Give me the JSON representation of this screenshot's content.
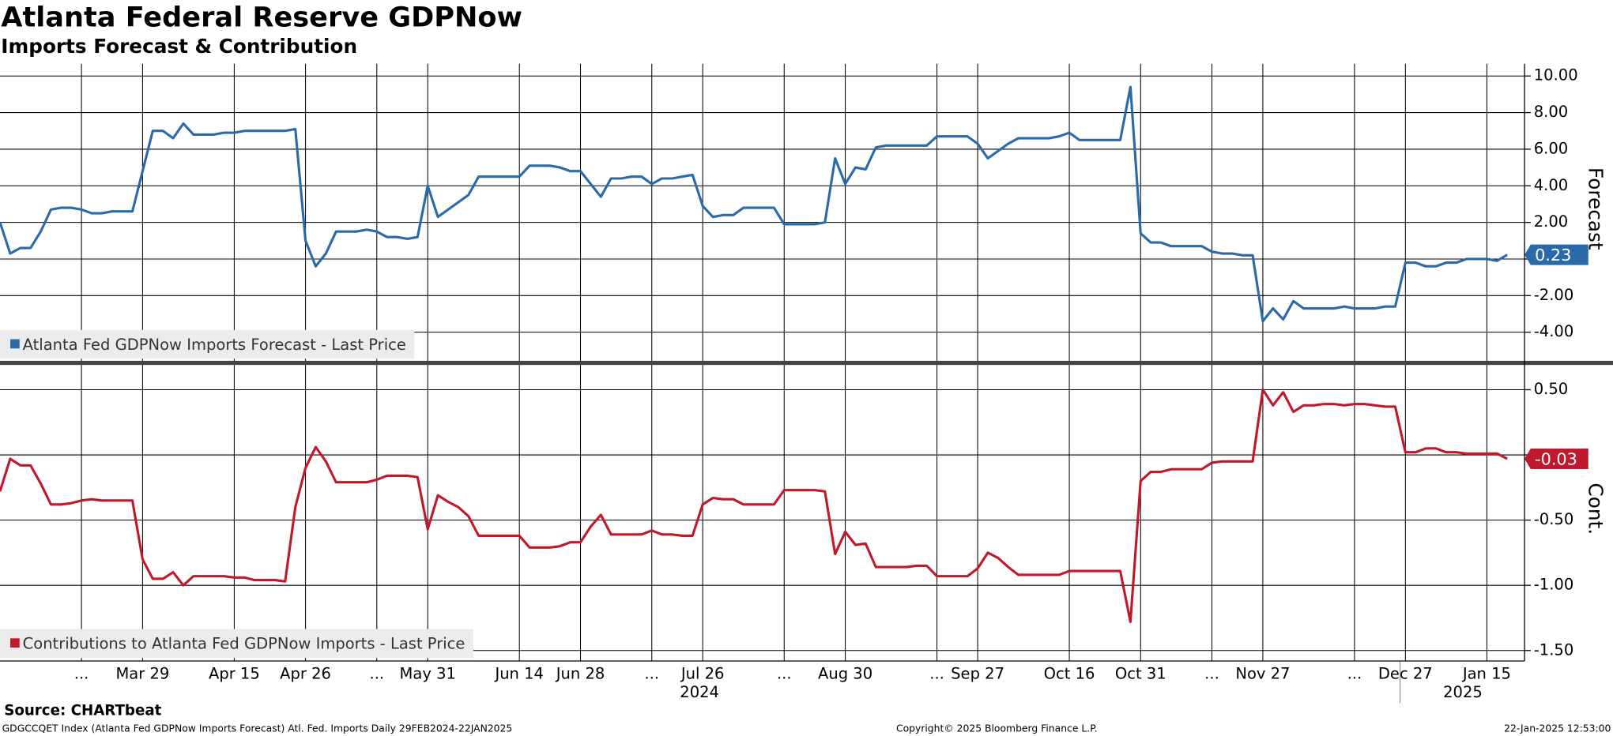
{
  "chart_data": {
    "type": "line",
    "title": "Atlanta Federal Reserve GDPNow",
    "subtitle": "Imports Forecast & Contribution",
    "source": "Source: CHARTbeat",
    "footer_left": "GDGCCQET Index (Atlanta Fed GDPNow Imports Forecast) Atl. Fed. Imports  Daily 29FEB2024-22JAN2025",
    "footer_center": "Copyright© 2025 Bloomberg Finance L.P.",
    "footer_right": "22-Jan-2025 12:53:00",
    "years": [
      "2024",
      "2025"
    ],
    "categories": [
      null,
      null,
      null,
      null,
      null,
      null,
      null,
      null,
      "...",
      null,
      null,
      null,
      null,
      null,
      "Mar 29",
      null,
      null,
      null,
      null,
      null,
      null,
      null,
      null,
      "Apr 15",
      null,
      null,
      null,
      null,
      null,
      null,
      "Apr 26",
      null,
      null,
      null,
      null,
      null,
      null,
      "...",
      null,
      null,
      null,
      null,
      "May 31",
      null,
      null,
      null,
      null,
      null,
      null,
      null,
      null,
      "Jun 14",
      null,
      null,
      null,
      null,
      null,
      "Jun 28",
      null,
      null,
      null,
      null,
      null,
      null,
      "...",
      null,
      null,
      null,
      null,
      "Jul 26",
      null,
      null,
      null,
      null,
      null,
      null,
      null,
      "...",
      null,
      null,
      null,
      null,
      null,
      "Aug 30",
      null,
      null,
      null,
      null,
      null,
      null,
      null,
      null,
      "...",
      null,
      null,
      null,
      "Sep 27",
      null,
      null,
      null,
      null,
      null,
      null,
      null,
      null,
      "Oct 16",
      null,
      null,
      null,
      null,
      null,
      null,
      "Oct 31",
      null,
      null,
      null,
      null,
      null,
      null,
      "...",
      null,
      null,
      null,
      null,
      "Nov 27",
      null,
      null,
      null,
      null,
      null,
      null,
      null,
      null,
      "...",
      null,
      null,
      null,
      null,
      "Dec 27",
      null,
      null,
      null,
      null,
      null,
      null,
      null,
      "Jan 15",
      null,
      null
    ],
    "series": [
      {
        "name": "Atlanta Fed GDPNow Imports Forecast - Last Price",
        "color": "#2a6aa8",
        "axis_title": "Forecast",
        "ylim": [
          -5.62,
          10.67
        ],
        "yticks": [
          {
            "value": -4,
            "label": "-4.00"
          },
          {
            "value": -2,
            "label": "-2.00"
          },
          {
            "value": 0,
            "label": ""
          },
          {
            "value": 2,
            "label": "2.00"
          },
          {
            "value": 4,
            "label": "4.00"
          },
          {
            "value": 6,
            "label": "6.00"
          },
          {
            "value": 8,
            "label": "8.00"
          },
          {
            "value": 10,
            "label": "10.00"
          }
        ],
        "values": [
          2.0,
          0.3,
          0.6,
          0.6,
          1.5,
          2.7,
          2.8,
          2.8,
          2.7,
          2.5,
          2.5,
          2.6,
          2.6,
          2.6,
          4.8,
          7.0,
          7.0,
          6.6,
          7.4,
          6.8,
          6.8,
          6.8,
          6.9,
          6.9,
          7.0,
          7.0,
          7.0,
          7.0,
          7.0,
          7.1,
          1.0,
          -0.4,
          0.3,
          1.5,
          1.5,
          1.5,
          1.6,
          1.5,
          1.2,
          1.2,
          1.1,
          1.2,
          4.0,
          2.3,
          2.7,
          3.1,
          3.5,
          4.5,
          4.5,
          4.5,
          4.5,
          4.5,
          5.1,
          5.1,
          5.1,
          5.0,
          4.8,
          4.8,
          4.1,
          3.4,
          4.4,
          4.4,
          4.5,
          4.5,
          4.1,
          4.4,
          4.4,
          4.5,
          4.6,
          2.9,
          2.3,
          2.4,
          2.4,
          2.8,
          2.8,
          2.8,
          2.8,
          1.9,
          1.9,
          1.9,
          1.9,
          2.0,
          5.5,
          4.1,
          5.0,
          4.9,
          6.1,
          6.2,
          6.2,
          6.2,
          6.2,
          6.2,
          6.7,
          6.7,
          6.7,
          6.7,
          6.3,
          5.5,
          5.9,
          6.3,
          6.6,
          6.6,
          6.6,
          6.6,
          6.7,
          6.9,
          6.5,
          6.5,
          6.5,
          6.5,
          6.5,
          9.4,
          1.4,
          0.9,
          0.9,
          0.7,
          0.7,
          0.7,
          0.7,
          0.4,
          0.3,
          0.3,
          0.2,
          0.2,
          -3.4,
          -2.7,
          -3.3,
          -2.3,
          -2.7,
          -2.7,
          -2.7,
          -2.7,
          -2.6,
          -2.7,
          -2.7,
          -2.7,
          -2.6,
          -2.6,
          -0.2,
          -0.2,
          -0.4,
          -0.4,
          -0.2,
          -0.2,
          0.0,
          0.0,
          0.0,
          -0.1,
          0.23
        ]
      },
      {
        "name": "Contributions to Atlanta Fed GDPNow Imports - Last Price",
        "color": "#c0182c",
        "axis_title": "Cont.",
        "ylim": [
          -1.58,
          0.69
        ],
        "yticks": [
          {
            "value": -1.5,
            "label": "-1.50"
          },
          {
            "value": -1,
            "label": "-1.00"
          },
          {
            "value": -0.5,
            "label": "-0.50"
          },
          {
            "value": 0,
            "label": ""
          },
          {
            "value": 0.5,
            "label": "0.50"
          }
        ],
        "values": [
          -0.28,
          -0.03,
          -0.08,
          -0.08,
          -0.22,
          -0.38,
          -0.38,
          -0.37,
          -0.35,
          -0.34,
          -0.35,
          -0.35,
          -0.35,
          -0.35,
          -0.8,
          -0.95,
          -0.95,
          -0.9,
          -1.0,
          -0.93,
          -0.93,
          -0.93,
          -0.93,
          -0.94,
          -0.94,
          -0.96,
          -0.96,
          -0.96,
          -0.97,
          -0.4,
          -0.1,
          0.06,
          -0.05,
          -0.21,
          -0.21,
          -0.21,
          -0.21,
          -0.19,
          -0.16,
          -0.16,
          -0.16,
          -0.17,
          -0.57,
          -0.31,
          -0.36,
          -0.4,
          -0.47,
          -0.62,
          -0.62,
          -0.62,
          -0.62,
          -0.62,
          -0.71,
          -0.71,
          -0.71,
          -0.7,
          -0.67,
          -0.67,
          -0.55,
          -0.46,
          -0.61,
          -0.61,
          -0.61,
          -0.61,
          -0.58,
          -0.61,
          -0.61,
          -0.62,
          -0.62,
          -0.38,
          -0.33,
          -0.34,
          -0.34,
          -0.38,
          -0.38,
          -0.38,
          -0.38,
          -0.27,
          -0.27,
          -0.27,
          -0.27,
          -0.28,
          -0.76,
          -0.59,
          -0.69,
          -0.68,
          -0.86,
          -0.86,
          -0.86,
          -0.86,
          -0.85,
          -0.85,
          -0.93,
          -0.93,
          -0.93,
          -0.93,
          -0.87,
          -0.75,
          -0.79,
          -0.86,
          -0.92,
          -0.92,
          -0.92,
          -0.92,
          -0.92,
          -0.89,
          -0.89,
          -0.89,
          -0.89,
          -0.89,
          -0.89,
          -1.28,
          -0.2,
          -0.13,
          -0.13,
          -0.11,
          -0.11,
          -0.11,
          -0.11,
          -0.06,
          -0.05,
          -0.05,
          -0.05,
          -0.05,
          0.5,
          0.38,
          0.48,
          0.33,
          0.38,
          0.38,
          0.39,
          0.39,
          0.38,
          0.39,
          0.39,
          0.38,
          0.37,
          0.37,
          0.02,
          0.02,
          0.05,
          0.05,
          0.02,
          0.02,
          0.01,
          0.01,
          0.01,
          0.01,
          -0.03
        ]
      }
    ]
  }
}
